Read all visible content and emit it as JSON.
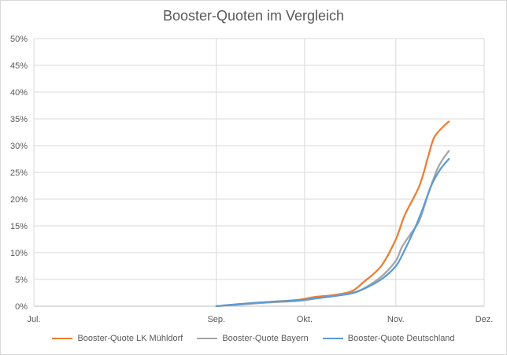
{
  "chart_data": {
    "type": "line",
    "title": "Booster-Quoten im Vergleich",
    "xlabel": "",
    "ylabel": "",
    "x_ticks": [
      {
        "label": "Jul.",
        "t": 0
      },
      {
        "label": "Sep.",
        "t": 62
      },
      {
        "label": "Okt.",
        "t": 92
      },
      {
        "label": "Nov.",
        "t": 123
      },
      {
        "label": "Dez.",
        "t": 153
      }
    ],
    "x_range": [
      0,
      153
    ],
    "ylim": [
      0,
      50
    ],
    "y_ticks": [
      "0%",
      "5%",
      "10%",
      "15%",
      "20%",
      "25%",
      "30%",
      "35%",
      "40%",
      "45%",
      "50%"
    ],
    "y_tick_values": [
      0,
      5,
      10,
      15,
      20,
      25,
      30,
      35,
      40,
      45,
      50
    ],
    "grid": true,
    "legend_position": "bottom",
    "series": [
      {
        "name": "Booster-Quote LK Mühldorf",
        "color": "#ED7D31",
        "points": [
          [
            62,
            0.0
          ],
          [
            70,
            0.4
          ],
          [
            80,
            0.8
          ],
          [
            90,
            1.2
          ],
          [
            95,
            1.7
          ],
          [
            102,
            2.1
          ],
          [
            108,
            2.8
          ],
          [
            112,
            4.5
          ],
          [
            118,
            7.5
          ],
          [
            123,
            12.5
          ],
          [
            126,
            17.0
          ],
          [
            131,
            22.5
          ],
          [
            134,
            28.0
          ],
          [
            136,
            31.5
          ],
          [
            139,
            33.5
          ],
          [
            141,
            34.5
          ]
        ]
      },
      {
        "name": "Booster-Quote Bayern",
        "color": "#A5A5A5",
        "points": [
          [
            62,
            0.0
          ],
          [
            70,
            0.3
          ],
          [
            80,
            0.7
          ],
          [
            90,
            1.0
          ],
          [
            95,
            1.4
          ],
          [
            102,
            1.9
          ],
          [
            108,
            2.5
          ],
          [
            112,
            3.3
          ],
          [
            118,
            5.5
          ],
          [
            123,
            8.5
          ],
          [
            125,
            11.0
          ],
          [
            128,
            13.5
          ],
          [
            131,
            16.0
          ],
          [
            134,
            21.0
          ],
          [
            137,
            25.5
          ],
          [
            139,
            27.5
          ],
          [
            141,
            29.0
          ]
        ]
      },
      {
        "name": "Booster-Quote Deutschland",
        "color": "#5B9BD5",
        "points": [
          [
            62,
            0.0
          ],
          [
            70,
            0.4
          ],
          [
            80,
            0.8
          ],
          [
            90,
            1.1
          ],
          [
            95,
            1.4
          ],
          [
            102,
            1.9
          ],
          [
            108,
            2.4
          ],
          [
            112,
            3.2
          ],
          [
            118,
            5.0
          ],
          [
            123,
            7.5
          ],
          [
            126,
            10.5
          ],
          [
            129,
            14.0
          ],
          [
            132,
            18.0
          ],
          [
            135,
            22.5
          ],
          [
            138,
            25.5
          ],
          [
            141,
            27.5
          ]
        ]
      }
    ]
  }
}
